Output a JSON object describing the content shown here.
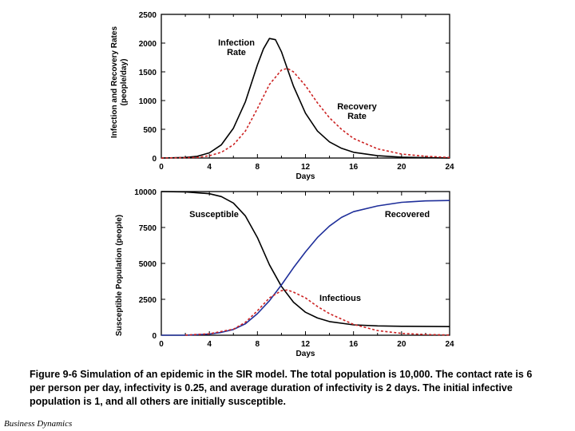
{
  "caption": "Figure 9-6  Simulation of an epidemic in the SIR model.  The total population is 10,000. The contact rate is 6 per person per day, infectivity is 0.25, and average duration of infectivity is 2 days. The initial infective population is 1, and all others are initially susceptible.",
  "footer": "Business Dynamics",
  "colors": {
    "black": "#000000",
    "red": "#cc2222",
    "blue": "#1f2f9a"
  },
  "chart_data": [
    {
      "type": "line",
      "title": "",
      "xlabel": "Days",
      "ylabel_lines": [
        "Infection and Recovery Rates",
        "(people/day)"
      ],
      "xlim": [
        0,
        24
      ],
      "ylim": [
        0,
        2500
      ],
      "x_ticks": [
        "0",
        "4",
        "8",
        "12",
        "16",
        "20",
        "24"
      ],
      "y_ticks": [
        "0",
        "500",
        "1000",
        "1500",
        "2000",
        "2500"
      ],
      "grid": false,
      "annotations": [
        {
          "lines": [
            "Infection",
            "Rate"
          ],
          "series": "Infection Rate"
        },
        {
          "lines": [
            "Recovery",
            "Rate"
          ],
          "series": "Recovery Rate"
        }
      ],
      "series": [
        {
          "name": "Infection Rate",
          "color": "black",
          "style": "solid",
          "x": [
            0,
            2,
            3,
            4,
            5,
            6,
            7,
            8,
            8.5,
            9,
            9.5,
            10,
            10.5,
            11,
            12,
            13,
            14,
            15,
            16,
            18,
            20,
            22,
            24
          ],
          "y": [
            0,
            10,
            30,
            90,
            230,
            520,
            980,
            1620,
            1900,
            2080,
            2060,
            1850,
            1550,
            1250,
            780,
            470,
            280,
            170,
            100,
            40,
            15,
            6,
            2
          ]
        },
        {
          "name": "Recovery Rate",
          "color": "red",
          "style": "dashed",
          "x": [
            0,
            3,
            4,
            5,
            6,
            7,
            8,
            9,
            10,
            10.5,
            11,
            12,
            13,
            14,
            15,
            16,
            18,
            20,
            22,
            24
          ],
          "y": [
            0,
            10,
            40,
            100,
            230,
            470,
            860,
            1280,
            1530,
            1560,
            1500,
            1260,
            960,
            700,
            500,
            340,
            160,
            70,
            30,
            10
          ]
        }
      ]
    },
    {
      "type": "line",
      "title": "",
      "xlabel": "Days",
      "ylabel_lines": [
        "Susceptible Population (people)"
      ],
      "xlim": [
        0,
        24
      ],
      "ylim": [
        0,
        10000
      ],
      "x_ticks": [
        "0",
        "4",
        "8",
        "12",
        "16",
        "20",
        "24"
      ],
      "y_ticks": [
        "0",
        "2500",
        "5000",
        "7500",
        "10000"
      ],
      "grid": false,
      "annotations": [
        {
          "lines": [
            "Susceptible"
          ],
          "series": "Susceptible"
        },
        {
          "lines": [
            "Recovered"
          ],
          "series": "Recovered"
        },
        {
          "lines": [
            "Infectious"
          ],
          "series": "Infectious"
        }
      ],
      "series": [
        {
          "name": "Susceptible",
          "color": "black",
          "style": "solid",
          "x": [
            0,
            2,
            4,
            5,
            6,
            7,
            8,
            9,
            10,
            11,
            12,
            13,
            14,
            16,
            18,
            20,
            24
          ],
          "y": [
            10000,
            9980,
            9850,
            9650,
            9200,
            8300,
            6800,
            4900,
            3400,
            2300,
            1600,
            1200,
            950,
            720,
            650,
            620,
            600
          ]
        },
        {
          "name": "Recovered",
          "color": "blue",
          "style": "solid",
          "x": [
            0,
            2,
            4,
            5,
            6,
            7,
            8,
            9,
            10,
            11,
            12,
            13,
            14,
            15,
            16,
            18,
            20,
            22,
            24
          ],
          "y": [
            0,
            0,
            80,
            200,
            400,
            800,
            1500,
            2400,
            3500,
            4700,
            5800,
            6800,
            7600,
            8200,
            8600,
            9000,
            9250,
            9350,
            9380
          ]
        },
        {
          "name": "Infectious",
          "color": "red",
          "style": "dashed",
          "x": [
            2,
            4,
            6,
            7,
            8,
            9,
            10,
            10.5,
            11,
            12,
            13,
            14,
            16,
            18,
            20,
            22,
            24
          ],
          "y": [
            10,
            100,
            420,
            900,
            1700,
            2600,
            3100,
            3150,
            3000,
            2600,
            2000,
            1500,
            750,
            320,
            130,
            50,
            15
          ]
        }
      ]
    }
  ]
}
